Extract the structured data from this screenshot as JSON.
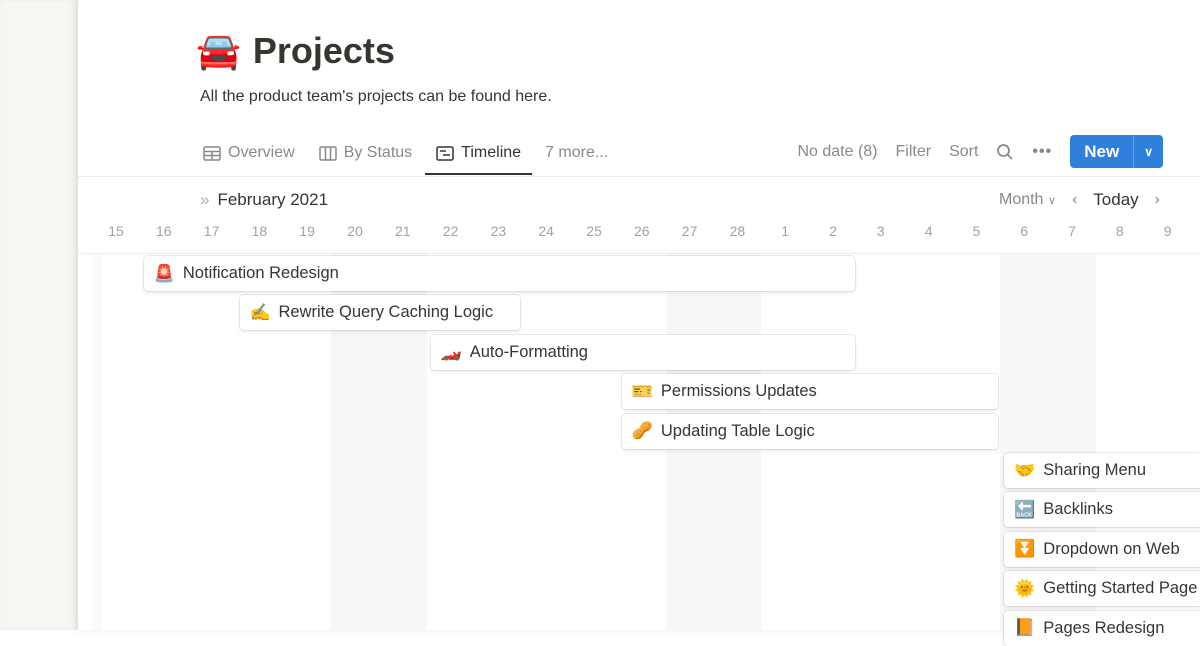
{
  "page": {
    "icon": "🚘",
    "title": "Projects",
    "description": "All the product team's projects can be found here."
  },
  "tabs": [
    {
      "label": "Overview",
      "icon": "table-icon"
    },
    {
      "label": "By Status",
      "icon": "board-icon"
    },
    {
      "label": "Timeline",
      "icon": "timeline-icon",
      "active": true
    },
    {
      "label": "7 more..."
    }
  ],
  "toolbar": {
    "no_date": "No date (8)",
    "filter": "Filter",
    "sort": "Sort",
    "new": "New",
    "accent": "#2f80dd"
  },
  "timeline": {
    "month": "February 2021",
    "scale": "Month",
    "today": "Today",
    "days": [
      "15",
      "16",
      "17",
      "18",
      "19",
      "20",
      "21",
      "22",
      "23",
      "24",
      "25",
      "26",
      "27",
      "28",
      "1",
      "2",
      "3",
      "4",
      "5",
      "6",
      "7",
      "8",
      "9"
    ],
    "items": [
      {
        "icon": "🚨",
        "name": "Notification Redesign",
        "start": "Feb 16",
        "end": "Mar 2"
      },
      {
        "icon": "✍️",
        "name": "Rewrite Query Caching Logic",
        "start": "Feb 18",
        "end": "Feb 23"
      },
      {
        "icon": "🏎️",
        "name": "Auto-Formatting",
        "start": "Feb 22",
        "end": "Mar 2"
      },
      {
        "icon": "🎫",
        "name": "Permissions Updates",
        "start": "Feb 26",
        "end": "Mar 5"
      },
      {
        "icon": "🥜",
        "name": "Updating Table Logic",
        "start": "Feb 26",
        "end": "Mar 5"
      },
      {
        "icon": "🤝",
        "name": "Sharing Menu",
        "start": "Mar 6"
      },
      {
        "icon": "🔙",
        "name": "Backlinks",
        "start": "Mar 6"
      },
      {
        "icon": "⏬",
        "name": "Dropdown on Web",
        "start": "Mar 6"
      },
      {
        "icon": "🌞",
        "name": "Getting Started Page",
        "start": "Mar 6"
      },
      {
        "icon": "📙",
        "name": "Pages Redesign",
        "start": "Mar 6"
      }
    ]
  }
}
